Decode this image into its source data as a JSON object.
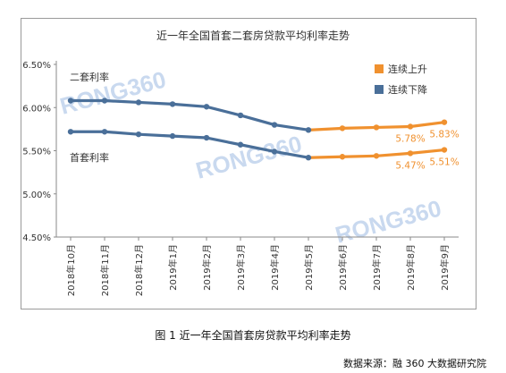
{
  "colors": {
    "upward": "#F0912F",
    "downward": "#4A6F99",
    "axis": "#8a8a8a",
    "text": "#333333",
    "watermark": "#c9d9ef"
  },
  "watermarks": [
    "RONG360",
    "RONG360",
    "RONG360"
  ],
  "figure_caption": "图 1  近一年全国首套房贷款平均利率走势",
  "source_note": "数据来源：融 360 大数据研究院",
  "chart_data": {
    "type": "line",
    "title": "近一年全国首套二套房贷款平均利率走势",
    "categories": [
      "2018年10月",
      "2018年11月",
      "2018年12月",
      "2019年1月",
      "2019年2月",
      "2019年3月",
      "2019年4月",
      "2019年5月",
      "2019年6月",
      "2019年7月",
      "2019年8月",
      "2019年9月"
    ],
    "ylim": [
      4.5,
      6.5
    ],
    "yticks": [
      "4.50%",
      "5.00%",
      "5.50%",
      "6.00%",
      "6.50%"
    ],
    "grid": false,
    "legend_position": "top-right",
    "legend": [
      {
        "label": "连续上升",
        "color": "#F0912F"
      },
      {
        "label": "连续下降",
        "color": "#4A6F99"
      }
    ],
    "series": [
      {
        "name": "二套利率",
        "values": [
          6.08,
          6.08,
          6.06,
          6.04,
          6.01,
          5.91,
          5.8,
          5.74,
          5.76,
          5.77,
          5.78,
          5.83
        ],
        "trend": [
          "down",
          "down",
          "down",
          "down",
          "down",
          "down",
          "down",
          "up",
          "up",
          "up",
          "up"
        ],
        "point_labels": {
          "10": "5.78%",
          "11": "5.83%"
        }
      },
      {
        "name": "首套利率",
        "values": [
          5.72,
          5.72,
          5.69,
          5.67,
          5.65,
          5.57,
          5.49,
          5.42,
          5.43,
          5.44,
          5.47,
          5.51
        ],
        "trend": [
          "down",
          "down",
          "down",
          "down",
          "down",
          "down",
          "down",
          "up",
          "up",
          "up",
          "up"
        ],
        "point_labels": {
          "10": "5.47%",
          "11": "5.51%"
        }
      }
    ]
  }
}
